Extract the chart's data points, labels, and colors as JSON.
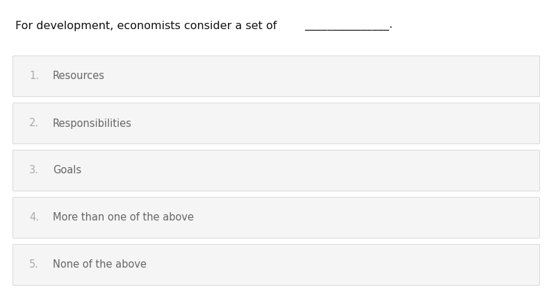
{
  "background_color": "#ffffff",
  "question_text": "For development, economists consider a set of",
  "blank_line": "_______________.",
  "options": [
    {
      "number": "1.",
      "text": "Resources"
    },
    {
      "number": "2.",
      "text": "Responsibilities"
    },
    {
      "number": "3.",
      "text": "Goals"
    },
    {
      "number": "4.",
      "text": "More than one of the above"
    },
    {
      "number": "5.",
      "text": "None of the above"
    }
  ],
  "option_box_color": "#f5f5f5",
  "option_border_color": "#d8d8d8",
  "number_color": "#aaaaaa",
  "text_color": "#666666",
  "question_color": "#111111",
  "question_fontsize": 11.5,
  "option_fontsize": 10.5,
  "fig_width": 8.0,
  "fig_height": 4.37,
  "dpi": 100
}
